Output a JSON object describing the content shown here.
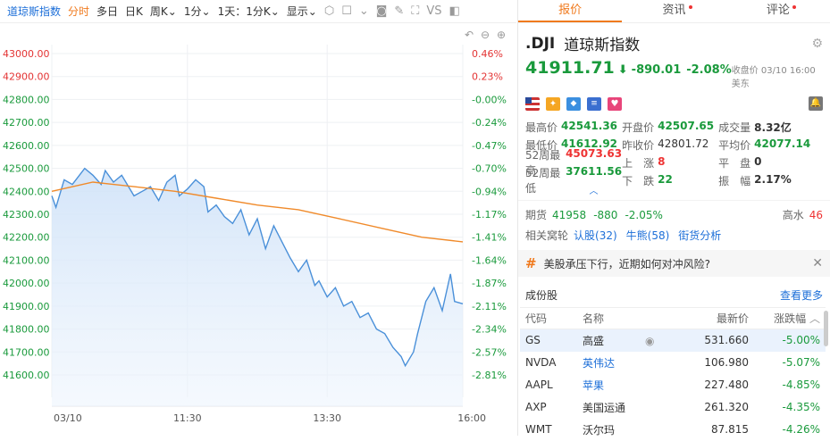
{
  "toolbar": {
    "index_name": "道琼斯指数",
    "intraday": "分时",
    "multiday": "多日",
    "daily": "日K",
    "period": "周K",
    "interval": "1分",
    "range": "1天：1分K",
    "display": "显示",
    "vs": "VS"
  },
  "tabs": [
    {
      "label": "报价"
    },
    {
      "label": "资讯"
    },
    {
      "label": "评论"
    }
  ],
  "quote": {
    "symbol": ".DJI",
    "name": "道琼斯指数",
    "price": "41911.71",
    "change": "-890.01",
    "change_pct": "-2.08%",
    "close_time": "收盘价 03/10 16:00 美东"
  },
  "stats": [
    [
      {
        "label": "最高价",
        "value": "42541.36",
        "tone": "g"
      },
      {
        "label": "开盘价",
        "value": "42507.65",
        "tone": "g"
      },
      {
        "label": "成交量",
        "value": "8.32亿",
        "tone": "k"
      }
    ],
    [
      {
        "label": "最低价",
        "value": "41612.92",
        "tone": "g"
      },
      {
        "label": "昨收价",
        "value": "42801.72",
        "tone": "n"
      },
      {
        "label": "平均价",
        "value": "42077.14",
        "tone": "g"
      }
    ],
    [
      {
        "label": "52周最高",
        "value": "45073.63",
        "tone": "r"
      },
      {
        "label": "上　涨",
        "value": "8",
        "tone": "r"
      },
      {
        "label": "平　盘",
        "value": "0",
        "tone": "k"
      }
    ],
    [
      {
        "label": "52周最低",
        "value": "37611.56",
        "tone": "g"
      },
      {
        "label": "下　跌",
        "value": "22",
        "tone": "g"
      },
      {
        "label": "振　幅",
        "value": "2.17%",
        "tone": "k"
      }
    ]
  ],
  "futures": {
    "label": "期货",
    "price": "41958",
    "change": "-880",
    "pct": "-2.05%",
    "gauge_label": "高水",
    "gauge_value": "46"
  },
  "related": {
    "label": "相关窝轮",
    "items": [
      "认股(32)",
      "牛熊(58)",
      "街货分析"
    ]
  },
  "news": {
    "text": "美股承压下行，近期如何对冲风险?"
  },
  "constituents": {
    "title": "成份股",
    "more": "查看更多",
    "headers": [
      "代码",
      "名称",
      "最新价",
      "涨跌幅"
    ],
    "rows": [
      {
        "code": "GS",
        "name": "高盛",
        "price": "531.660",
        "pct": "-5.00%"
      },
      {
        "code": "NVDA",
        "name": "英伟达",
        "price": "106.980",
        "pct": "-5.07%"
      },
      {
        "code": "AAPL",
        "name": "苹果",
        "price": "227.480",
        "pct": "-4.85%"
      },
      {
        "code": "AXP",
        "name": "美国运通",
        "price": "261.320",
        "pct": "-4.35%"
      },
      {
        "code": "WMT",
        "name": "沃尔玛",
        "price": "87.815",
        "pct": "-4.26%"
      }
    ]
  },
  "colors": {
    "green": "#1a9a3c",
    "red": "#e33333",
    "orange": "#f07a1e",
    "blue": "#1d6fd8",
    "line": "#4a90d9",
    "avg_line": "#f08a2a"
  },
  "chart_data": {
    "type": "line",
    "x_ticks": [
      "03/10",
      "11:30",
      "13:30",
      "16:00"
    ],
    "y_ticks_left": [
      "43000.00",
      "42900.00",
      "42800.00",
      "42700.00",
      "42600.00",
      "42500.00",
      "42400.00",
      "42300.00",
      "42200.00",
      "42100.00",
      "42000.00",
      "41900.00",
      "41800.00",
      "41700.00",
      "41600.00"
    ],
    "y_ticks_right": [
      "0.46%",
      "0.23%",
      "-0.00%",
      "-0.24%",
      "-0.47%",
      "-0.70%",
      "-0.94%",
      "-1.17%",
      "-1.41%",
      "-1.64%",
      "-1.87%",
      "-2.11%",
      "-2.34%",
      "-2.57%",
      "-2.81%"
    ],
    "ylim": [
      41550,
      43050
    ],
    "prev_close": 42801.72,
    "price_t": [
      0,
      0.01,
      0.03,
      0.05,
      0.08,
      0.1,
      0.12,
      0.13,
      0.15,
      0.17,
      0.2,
      0.22,
      0.24,
      0.26,
      0.28,
      0.3,
      0.31,
      0.33,
      0.35,
      0.37,
      0.38,
      0.4,
      0.42,
      0.44,
      0.46,
      0.48,
      0.5,
      0.52,
      0.54,
      0.56,
      0.58,
      0.6,
      0.62,
      0.64,
      0.65,
      0.67,
      0.69,
      0.71,
      0.73,
      0.75,
      0.77,
      0.79,
      0.81,
      0.83,
      0.85,
      0.86,
      0.88,
      0.89,
      0.9,
      0.91,
      0.93,
      0.95,
      0.97,
      0.98,
      1.0
    ],
    "price": [
      42380,
      42330,
      42450,
      42430,
      42500,
      42470,
      42430,
      42490,
      42440,
      42470,
      42380,
      42400,
      42420,
      42360,
      42440,
      42470,
      42380,
      42410,
      42450,
      42420,
      42310,
      42340,
      42290,
      42260,
      42320,
      42210,
      42280,
      42150,
      42250,
      42180,
      42110,
      42050,
      42100,
      41990,
      42010,
      41940,
      41980,
      41900,
      41920,
      41850,
      41870,
      41800,
      41780,
      41720,
      41680,
      41640,
      41700,
      41780,
      41850,
      41920,
      41980,
      41880,
      42040,
      41920,
      41910
    ],
    "avg_t": [
      0,
      0.1,
      0.2,
      0.3,
      0.4,
      0.5,
      0.6,
      0.7,
      0.8,
      0.9,
      1.0
    ],
    "avg": [
      42400,
      42440,
      42420,
      42400,
      42370,
      42340,
      42320,
      42280,
      42240,
      42200,
      42180
    ]
  }
}
